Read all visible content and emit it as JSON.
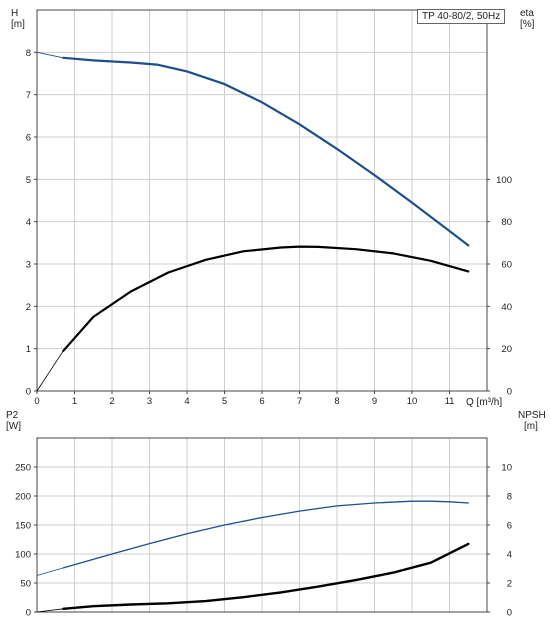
{
  "chart_data": [
    {
      "type": "line",
      "title": "TP 40-80/2, 50Hz",
      "xlabel": "Q [m³/h]",
      "ylabel_left": [
        "H",
        "[m]"
      ],
      "ylabel_right": [
        "eta",
        "[%]"
      ],
      "xlim": [
        0,
        12
      ],
      "ylim_left": [
        0,
        9
      ],
      "ylim_right": [
        0,
        180
      ],
      "x_ticks": [
        "0",
        "1",
        "2",
        "3",
        "4",
        "5",
        "6",
        "7",
        "8",
        "9",
        "10",
        "11"
      ],
      "y_ticks_left": [
        "0",
        "1",
        "2",
        "3",
        "4",
        "5",
        "6",
        "7",
        "8"
      ],
      "y_ticks_right": [
        "0",
        "20",
        "40",
        "60",
        "80",
        "100"
      ],
      "grid": true,
      "series": [
        {
          "axis": "left",
          "color": "#1f4e8c",
          "x": [
            0,
            0.7,
            1.5,
            2.5,
            3.2,
            4.0,
            5.0,
            6.0,
            7.0,
            8.0,
            9.0,
            10.0,
            11.0,
            11.5
          ],
          "y": [
            8.0,
            7.87,
            7.81,
            7.76,
            7.71,
            7.55,
            7.25,
            6.82,
            6.3,
            5.72,
            5.1,
            4.45,
            3.78,
            3.44
          ],
          "dashed_until": 0.7
        },
        {
          "axis": "right",
          "color": "#000000",
          "x": [
            0,
            0.7,
            1.5,
            2.5,
            3.5,
            4.5,
            5.5,
            6.5,
            7.0,
            7.5,
            8.5,
            9.5,
            10.5,
            11.5
          ],
          "y": [
            0,
            19,
            35,
            47,
            56,
            62,
            66,
            67.8,
            68.2,
            68.1,
            67,
            65,
            61.5,
            56.5
          ],
          "dashed_until": 0.7
        }
      ]
    },
    {
      "type": "line",
      "xlabel": "",
      "ylabel_left": [
        "P2",
        "[W]"
      ],
      "ylabel_right": [
        "NPSH",
        "[m]"
      ],
      "xlim": [
        0,
        12
      ],
      "ylim_left": [
        0,
        300
      ],
      "ylim_right": [
        0,
        12
      ],
      "y_ticks_left": [
        "0",
        "50",
        "100",
        "150",
        "200",
        "250"
      ],
      "y_ticks_right": [
        "0",
        "2",
        "4",
        "6",
        "8",
        "10"
      ],
      "grid": true,
      "series": [
        {
          "axis": "left",
          "color": "#1f4e8c",
          "x": [
            0,
            0.7,
            2,
            3,
            4,
            5,
            6,
            7,
            8,
            9,
            10,
            10.5,
            11,
            11.5
          ],
          "y": [
            63,
            76,
            100,
            118,
            135,
            150,
            163,
            174,
            183,
            188,
            191,
            191,
            190,
            188
          ],
          "dashed_until": 0.7
        },
        {
          "axis": "right",
          "color": "#000000",
          "x": [
            0,
            0.7,
            1.5,
            2.5,
            3.5,
            4.5,
            5.5,
            6.5,
            7.5,
            8.5,
            9.5,
            10.5,
            11.5
          ],
          "y": [
            0,
            0.22,
            0.4,
            0.52,
            0.6,
            0.75,
            1.02,
            1.35,
            1.75,
            2.2,
            2.72,
            3.4,
            4.7
          ],
          "dashed_until": 0.7
        }
      ]
    }
  ]
}
